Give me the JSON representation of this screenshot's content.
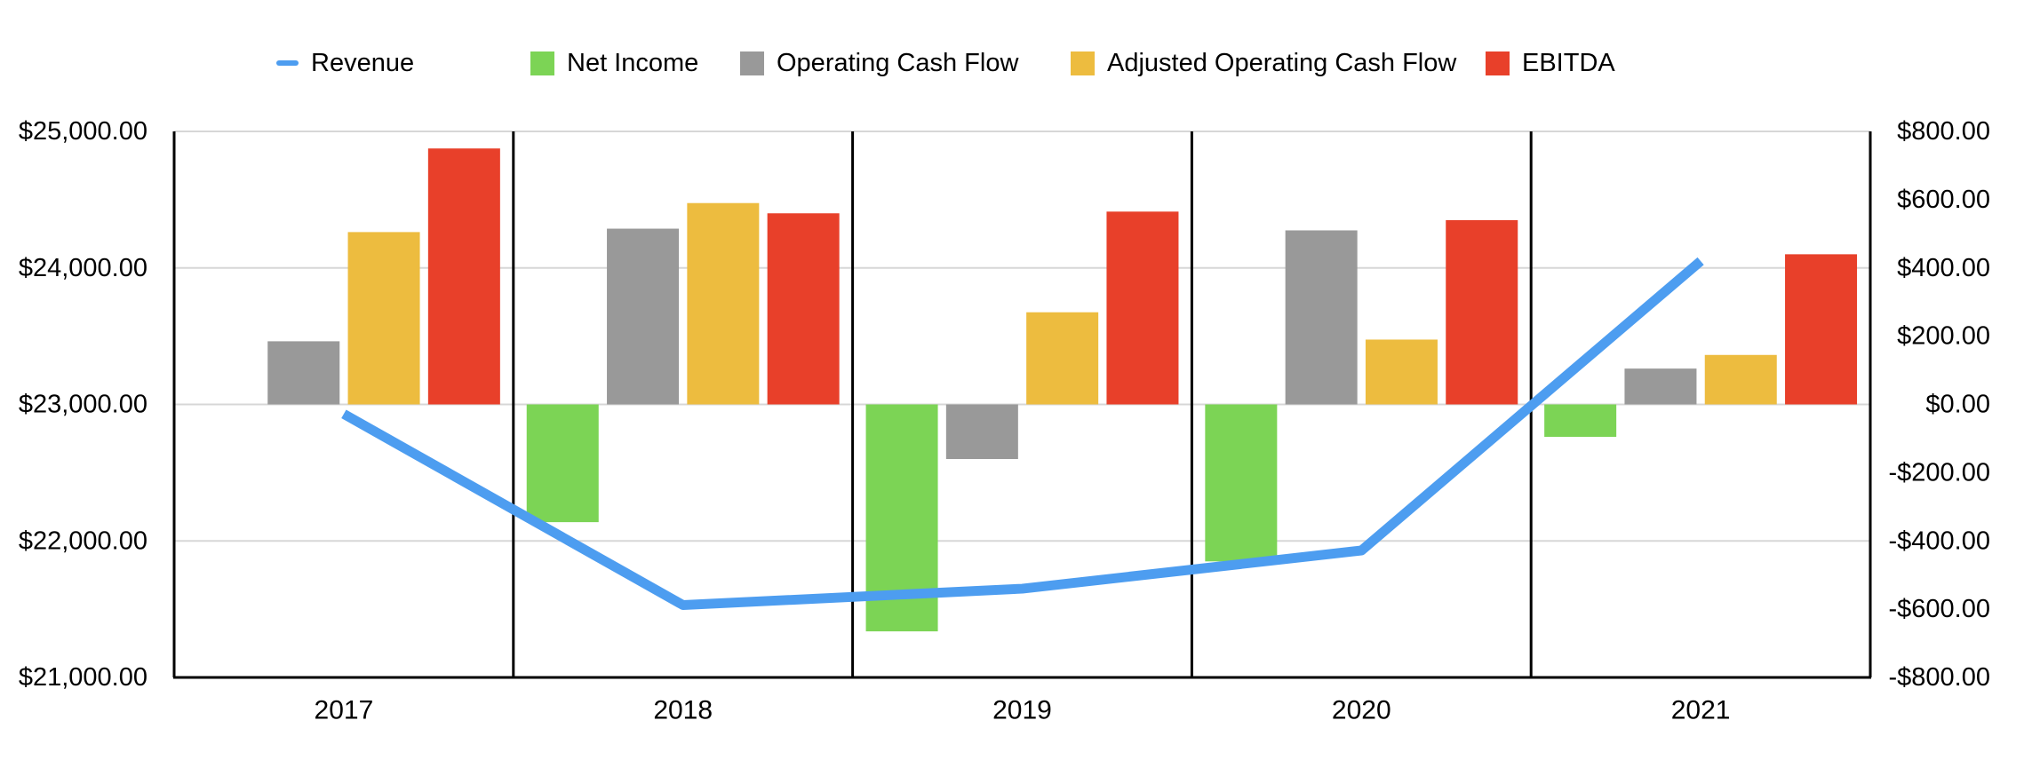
{
  "chart_data": {
    "type": "combo-bar-line",
    "title": "",
    "categories": [
      "2017",
      "2018",
      "2019",
      "2020",
      "2021"
    ],
    "left_axis": {
      "applies_to": "Revenue",
      "min": 21000,
      "max": 25000,
      "tick_step": 1000,
      "tick_labels": [
        "$25,000.00",
        "$24,000.00",
        "$23,000.00",
        "$22,000.00",
        "$21,000.00"
      ]
    },
    "right_axis": {
      "applies_to": "Net Income, Operating Cash Flow, Adjusted Operating Cash Flow, EBITDA",
      "min": -800,
      "max": 800,
      "tick_step": 200,
      "tick_labels": [
        "$800.00",
        "$600.00",
        "$400.00",
        "$200.00",
        "$0.00",
        "-$200.00",
        "-$400.00",
        "-$600.00",
        "-$800.00"
      ]
    },
    "series": [
      {
        "name": "Revenue",
        "type": "line",
        "axis": "left",
        "color": "#4D9DF0",
        "values": [
          22930,
          21530,
          21650,
          21930,
          24050
        ]
      },
      {
        "name": "Net Income",
        "type": "bar",
        "axis": "right",
        "color": "#7CD455",
        "values": [
          null,
          -345,
          -665,
          -460,
          -95
        ]
      },
      {
        "name": "Operating Cash Flow",
        "type": "bar",
        "axis": "right",
        "color": "#999999",
        "values": [
          185,
          515,
          -160,
          510,
          105
        ]
      },
      {
        "name": "Adjusted Operating Cash Flow",
        "type": "bar",
        "axis": "right",
        "color": "#EDBC3F",
        "values": [
          505,
          590,
          270,
          190,
          145
        ]
      },
      {
        "name": "EBITDA",
        "type": "bar",
        "axis": "right",
        "color": "#E8402A",
        "values": [
          750,
          560,
          565,
          540,
          440
        ]
      }
    ],
    "legend_position": "top",
    "grid": {
      "horizontal_gridlines": true,
      "vertical_panel_dividers": true
    },
    "colors": {
      "gridline": "#d7d7d7",
      "axis_line": "#000000",
      "text": "#000000",
      "background": "#ffffff"
    }
  }
}
